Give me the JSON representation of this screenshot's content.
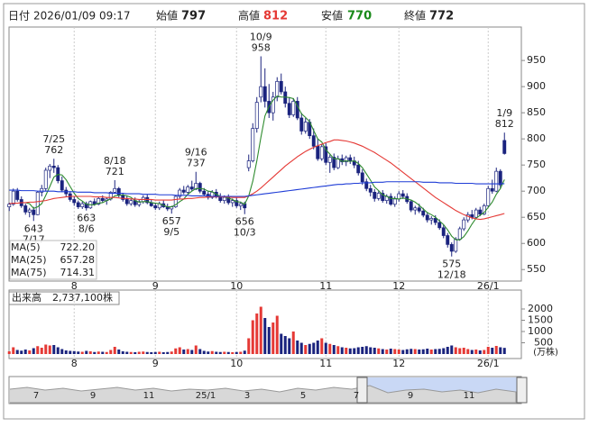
{
  "header": {
    "date_label": "日付",
    "datetime": "2026/01/09 09:17",
    "open_label": "始値",
    "high_label": "高値",
    "low_label": "安値",
    "close_label": "終値"
  },
  "chart_data": {
    "type": "candlestick",
    "categories": [
      null,
      null,
      null,
      null,
      null,
      null,
      null,
      null,
      null,
      null,
      null,
      null,
      null,
      null,
      null,
      null,
      "8",
      null,
      null,
      null,
      null,
      null,
      null,
      null,
      null,
      null,
      null,
      null,
      null,
      null,
      null,
      null,
      null,
      null,
      null,
      null,
      "9",
      null,
      null,
      null,
      null,
      null,
      null,
      null,
      null,
      null,
      null,
      null,
      null,
      null,
      null,
      null,
      null,
      null,
      null,
      null,
      "10",
      null,
      null,
      null,
      null,
      null,
      null,
      null,
      null,
      null,
      null,
      null,
      null,
      null,
      null,
      null,
      null,
      null,
      null,
      null,
      null,
      null,
      "11",
      null,
      null,
      null,
      null,
      null,
      null,
      null,
      null,
      null,
      null,
      null,
      null,
      null,
      null,
      null,
      null,
      null,
      "12",
      null,
      null,
      null,
      null,
      null,
      null,
      null,
      null,
      null,
      null,
      null,
      null,
      null,
      null,
      null,
      null,
      null,
      null,
      null,
      null,
      null,
      "26/1",
      null,
      null,
      null,
      null
    ],
    "ohlc": [
      [
        670,
        678,
        662,
        675
      ],
      [
        675,
        705,
        672,
        700
      ],
      [
        700,
        706,
        680,
        684
      ],
      [
        684,
        690,
        668,
        672
      ],
      [
        672,
        676,
        655,
        660
      ],
      [
        660,
        668,
        650,
        664
      ],
      [
        664,
        670,
        643,
        655
      ],
      [
        655,
        700,
        654,
        698
      ],
      [
        698,
        712,
        690,
        705
      ],
      [
        705,
        745,
        700,
        740
      ],
      [
        740,
        752,
        725,
        748
      ],
      [
        748,
        762,
        735,
        745
      ],
      [
        745,
        750,
        715,
        720
      ],
      [
        720,
        728,
        698,
        702
      ],
      [
        702,
        708,
        690,
        695
      ],
      [
        695,
        700,
        680,
        684
      ],
      [
        684,
        690,
        672,
        678
      ],
      [
        678,
        682,
        666,
        670
      ],
      [
        670,
        680,
        666,
        676
      ],
      [
        676,
        680,
        663,
        668
      ],
      [
        668,
        682,
        666,
        680
      ],
      [
        680,
        686,
        672,
        675
      ],
      [
        675,
        690,
        673,
        686
      ],
      [
        686,
        692,
        678,
        682
      ],
      [
        682,
        688,
        674,
        685
      ],
      [
        685,
        700,
        682,
        698
      ],
      [
        698,
        721,
        695,
        705
      ],
      [
        705,
        708,
        688,
        692
      ],
      [
        692,
        696,
        680,
        684
      ],
      [
        684,
        690,
        672,
        676
      ],
      [
        676,
        686,
        672,
        682
      ],
      [
        682,
        688,
        670,
        674
      ],
      [
        674,
        684,
        670,
        680
      ],
      [
        680,
        692,
        676,
        688
      ],
      [
        688,
        694,
        675,
        678
      ],
      [
        678,
        684,
        670,
        672
      ],
      [
        672,
        678,
        664,
        668
      ],
      [
        668,
        680,
        664,
        676
      ],
      [
        676,
        682,
        668,
        670
      ],
      [
        670,
        676,
        662,
        666
      ],
      [
        666,
        672,
        657,
        670
      ],
      [
        670,
        692,
        668,
        690
      ],
      [
        690,
        706,
        686,
        702
      ],
      [
        702,
        710,
        694,
        698
      ],
      [
        698,
        712,
        695,
        708
      ],
      [
        708,
        720,
        700,
        704
      ],
      [
        704,
        737,
        702,
        715
      ],
      [
        715,
        718,
        696,
        700
      ],
      [
        700,
        706,
        690,
        694
      ],
      [
        694,
        700,
        684,
        688
      ],
      [
        688,
        702,
        685,
        698
      ],
      [
        698,
        704,
        686,
        690
      ],
      [
        690,
        696,
        678,
        682
      ],
      [
        682,
        692,
        676,
        688
      ],
      [
        688,
        694,
        674,
        678
      ],
      [
        678,
        686,
        670,
        682
      ],
      [
        682,
        688,
        668,
        672
      ],
      [
        672,
        680,
        664,
        676
      ],
      [
        676,
        680,
        656,
        668
      ],
      [
        745,
        770,
        738,
        758
      ],
      [
        758,
        830,
        755,
        820
      ],
      [
        820,
        880,
        812,
        870
      ],
      [
        880,
        958,
        870,
        900
      ],
      [
        900,
        935,
        860,
        872
      ],
      [
        872,
        905,
        840,
        850
      ],
      [
        850,
        890,
        835,
        880
      ],
      [
        880,
        918,
        872,
        910
      ],
      [
        910,
        925,
        885,
        890
      ],
      [
        890,
        900,
        860,
        868
      ],
      [
        868,
        880,
        840,
        846
      ],
      [
        846,
        878,
        842,
        872
      ],
      [
        872,
        880,
        836,
        840
      ],
      [
        840,
        850,
        808,
        815
      ],
      [
        815,
        840,
        810,
        832
      ],
      [
        832,
        838,
        800,
        806
      ],
      [
        806,
        820,
        780,
        786
      ],
      [
        786,
        800,
        758,
        762
      ],
      [
        762,
        790,
        758,
        785
      ],
      [
        785,
        792,
        750,
        755
      ],
      [
        755,
        770,
        735,
        765
      ],
      [
        765,
        772,
        740,
        745
      ],
      [
        745,
        768,
        742,
        762
      ],
      [
        762,
        770,
        750,
        756
      ],
      [
        756,
        768,
        748,
        764
      ],
      [
        764,
        770,
        752,
        758
      ],
      [
        758,
        766,
        744,
        750
      ],
      [
        750,
        758,
        730,
        735
      ],
      [
        735,
        742,
        712,
        718
      ],
      [
        718,
        724,
        700,
        705
      ],
      [
        705,
        712,
        690,
        698
      ],
      [
        698,
        704,
        680,
        686
      ],
      [
        686,
        700,
        682,
        696
      ],
      [
        696,
        702,
        678,
        682
      ],
      [
        682,
        694,
        676,
        690
      ],
      [
        690,
        696,
        672,
        675
      ],
      [
        675,
        690,
        670,
        685
      ],
      [
        685,
        700,
        680,
        695
      ],
      [
        695,
        702,
        685,
        690
      ],
      [
        690,
        696,
        676,
        680
      ],
      [
        680,
        684,
        660,
        664
      ],
      [
        664,
        672,
        655,
        668
      ],
      [
        668,
        676,
        658,
        662
      ],
      [
        662,
        668,
        650,
        654
      ],
      [
        654,
        660,
        640,
        645
      ],
      [
        645,
        652,
        636,
        648
      ],
      [
        648,
        654,
        635,
        640
      ],
      [
        640,
        646,
        626,
        630
      ],
      [
        630,
        636,
        610,
        615
      ],
      [
        615,
        620,
        592,
        598
      ],
      [
        598,
        602,
        575,
        585
      ],
      [
        585,
        612,
        582,
        608
      ],
      [
        608,
        632,
        605,
        628
      ],
      [
        628,
        650,
        624,
        645
      ],
      [
        645,
        660,
        640,
        655
      ],
      [
        655,
        664,
        646,
        650
      ],
      [
        650,
        668,
        648,
        664
      ],
      [
        664,
        670,
        652,
        656
      ],
      [
        656,
        676,
        654,
        672
      ],
      [
        672,
        710,
        670,
        705
      ],
      [
        705,
        722,
        695,
        700
      ],
      [
        700,
        745,
        698,
        738
      ],
      [
        738,
        742,
        705,
        712
      ],
      [
        797,
        812,
        770,
        772
      ]
    ],
    "up_color": "#ffffff",
    "down_color": "#1a237e",
    "series": [
      {
        "name": "MA(5)",
        "color": "#2e8b2e",
        "latest": {
          "value": 722.2,
          "label": "722.20"
        },
        "values": [
          null,
          null,
          null,
          null,
          678.2,
          676,
          667,
          670,
          676,
          692,
          709,
          727,
          732,
          731,
          722,
          709,
          696,
          686,
          681,
          675,
          674,
          674,
          677,
          678,
          682,
          685,
          691,
          692,
          693,
          691,
          688,
          682,
          679,
          680,
          680,
          678,
          677,
          676,
          673,
          670,
          670,
          674,
          680,
          685,
          694,
          700,
          705,
          705,
          704,
          700,
          699,
          694,
          690,
          689,
          687,
          684,
          680,
          679,
          675,
          691,
          719,
          758,
          803,
          844,
          862,
          874,
          882,
          880,
          880,
          879,
          877,
          863,
          848,
          841,
          833,
          816,
          800,
          794,
          779,
          771,
          762,
          762,
          757,
          758,
          757,
          758,
          753,
          745,
          733,
          721,
          708,
          701,
          693,
          690,
          686,
          686,
          685,
          687,
          685,
          683,
          679,
          673,
          666,
          659,
          655,
          650,
          643,
          636,
          626,
          614,
          607,
          607,
          613,
          624,
          637,
          648,
          654,
          659,
          669,
          679,
          694,
          705,
          722.2
        ]
      },
      {
        "name": "MA(25)",
        "color": "#e53935",
        "latest": {
          "value": 657.28,
          "label": "657.28"
        },
        "values": [
          676,
          677,
          677,
          678,
          678,
          679,
          679,
          680,
          681,
          682,
          684,
          686,
          687,
          688,
          689,
          690,
          690,
          690,
          690,
          690,
          690,
          689,
          689,
          689,
          688,
          688,
          688,
          687,
          686,
          686,
          685,
          685,
          684,
          684,
          684,
          684,
          683,
          683,
          683,
          683,
          683,
          684,
          685,
          685,
          686,
          686,
          687,
          688,
          688,
          689,
          689,
          689,
          689,
          689,
          689,
          688,
          688,
          688,
          688,
          691,
          695,
          700,
          706,
          713,
          720,
          727,
          734,
          741,
          748,
          754,
          760,
          766,
          771,
          776,
          780,
          784,
          787,
          790,
          793,
          795,
          798,
          798,
          797,
          796,
          794,
          792,
          789,
          786,
          782,
          778,
          774,
          769,
          764,
          759,
          754,
          748,
          742,
          736,
          730,
          724,
          718,
          712,
          706,
          700,
          694,
          688,
          683,
          678,
          673,
          668,
          663,
          659,
          655,
          652,
          649,
          647,
          646,
          647,
          649,
          651,
          653,
          655,
          657.28
        ]
      },
      {
        "name": "MA(75)",
        "color": "#1e3cd6",
        "latest": {
          "value": 714.31,
          "label": "714.31"
        },
        "values": [
          702,
          702,
          702,
          701,
          701,
          701,
          701,
          700,
          700,
          700,
          700,
          700,
          699,
          699,
          699,
          699,
          699,
          698,
          698,
          698,
          698,
          697,
          697,
          697,
          697,
          696,
          696,
          696,
          696,
          695,
          695,
          695,
          695,
          694,
          694,
          694,
          694,
          693,
          693,
          693,
          693,
          692,
          692,
          692,
          692,
          691,
          691,
          691,
          691,
          691,
          690,
          690,
          690,
          690,
          690,
          690,
          690,
          690,
          690,
          691,
          692,
          693,
          694,
          695,
          696,
          697,
          698,
          699,
          700,
          701,
          702,
          703,
          704,
          705,
          706,
          707,
          708,
          709,
          710,
          711,
          712,
          713,
          713,
          714,
          714,
          715,
          715,
          716,
          716,
          716,
          717,
          717,
          717,
          718,
          718,
          718,
          718,
          718,
          718,
          718,
          718,
          718,
          717,
          717,
          717,
          717,
          716,
          716,
          716,
          716,
          715,
          715,
          715,
          715,
          715,
          714,
          714,
          714,
          714,
          714,
          714,
          714,
          714.31
        ]
      }
    ],
    "annotations": [
      {
        "date": "7/17",
        "value": 643
      },
      {
        "date": "7/25",
        "value": 762
      },
      {
        "date": "8/6",
        "value": 663
      },
      {
        "date": "8/18",
        "value": 721
      },
      {
        "date": "9/5",
        "value": 657
      },
      {
        "date": "9/16",
        "value": 737
      },
      {
        "date": "10/3",
        "value": 656
      },
      {
        "date": "10/9",
        "value": 958
      },
      {
        "date": "12/18",
        "value": 575
      },
      {
        "date": "1/9",
        "value": 812
      }
    ],
    "ylim": [
      528,
      1014
    ],
    "yticks": [
      550,
      600,
      650,
      700,
      750,
      800,
      850,
      900,
      950
    ],
    "grid": true,
    "volume": {
      "title": "出来高",
      "total_label": "2,737,100株",
      "unit": "(万株)",
      "ylim": [
        0,
        2400
      ],
      "yticks": [
        500,
        1000,
        1500,
        2000
      ],
      "up_color": "#e53935",
      "down_color": "#1a237e",
      "values": [
        120,
        300,
        180,
        150,
        200,
        160,
        260,
        350,
        280,
        420,
        380,
        400,
        300,
        220,
        160,
        140,
        130,
        110,
        100,
        140,
        120,
        90,
        110,
        100,
        90,
        180,
        320,
        200,
        120,
        100,
        90,
        80,
        100,
        110,
        90,
        80,
        90,
        100,
        80,
        90,
        110,
        250,
        300,
        200,
        220,
        180,
        380,
        220,
        140,
        110,
        130,
        100,
        90,
        100,
        90,
        80,
        90,
        100,
        150,
        700,
        1500,
        1800,
        2100,
        1600,
        1200,
        1400,
        1700,
        900,
        800,
        700,
        1000,
        600,
        500,
        400,
        450,
        500,
        600,
        700,
        500,
        450,
        400,
        350,
        300,
        280,
        250,
        260,
        300,
        320,
        350,
        300,
        280,
        250,
        220,
        200,
        240,
        220,
        200,
        180,
        210,
        230,
        220,
        200,
        210,
        240,
        200,
        220,
        230,
        260,
        320,
        380,
        300,
        260,
        280,
        220,
        180,
        200,
        160,
        180,
        320,
        280,
        360,
        300,
        273.71
      ]
    },
    "navigator": {
      "labels": [
        "7",
        "9",
        "11",
        "25/1",
        "3",
        "5",
        "7",
        "9",
        "11"
      ]
    }
  }
}
